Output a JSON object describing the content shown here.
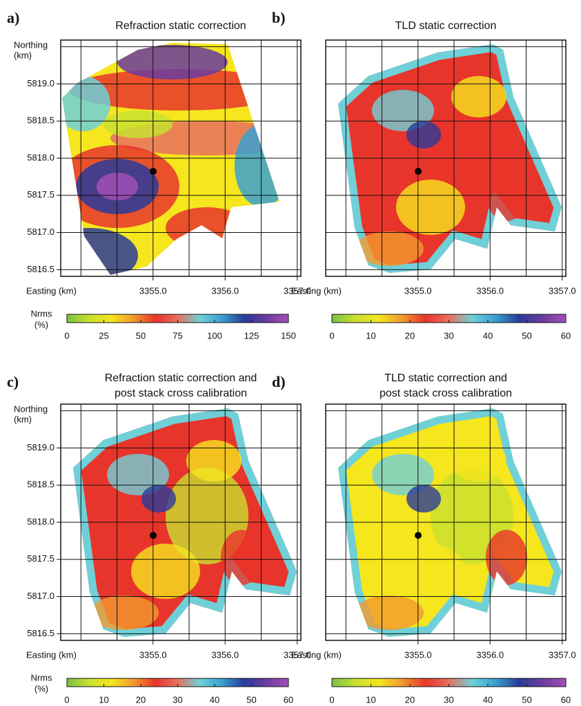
{
  "chart_data": [
    {
      "type": "heatmap",
      "label": "a)",
      "title": [
        "Refraction static correction"
      ],
      "ylabel": [
        "Northing",
        "(km)"
      ],
      "xlabel": "Easting (km)",
      "xlim": [
        3353.72,
        3357.05
      ],
      "ylim": [
        5816.41,
        5819.59
      ],
      "grid_spacing": 0.5,
      "xticks": [
        {
          "value": 3355,
          "label": "3355.0"
        },
        {
          "value": 3356,
          "label": "3356.0"
        },
        {
          "value": 3357,
          "label": "3357.0"
        }
      ],
      "yticks": [
        {
          "value": 5816.5,
          "label": "5816.5"
        },
        {
          "value": 5817,
          "label": "5817.0"
        },
        {
          "value": 5817.5,
          "label": "5817.5"
        },
        {
          "value": 5818,
          "label": "5818.0"
        },
        {
          "value": 5818.5,
          "label": "5818.5"
        },
        {
          "value": 5819,
          "label": "5819.0"
        }
      ],
      "colorbar": {
        "label": [
          "Nrms",
          "(%)"
        ],
        "lim": [
          0,
          150
        ],
        "ticks": [
          0,
          25,
          50,
          75,
          100,
          125,
          150
        ],
        "colors": [
          "#7ac143",
          "#c8e030",
          "#f5e61e",
          "#f29a2e",
          "#e8352b",
          "#e87060",
          "#6fd0d8",
          "#3aa0d0",
          "#2a3b9a",
          "#6a3ca0",
          "#a34fb8"
        ]
      }
    },
    {
      "type": "heatmap",
      "label": "b)",
      "title": [
        "TLD static correction"
      ],
      "xlabel": "Easting (km)",
      "xlim": [
        3353.72,
        3357.05
      ],
      "ylim": [
        5816.41,
        5819.59
      ],
      "grid_spacing": 0.5,
      "xticks": [
        {
          "value": 3355,
          "label": "3355.0"
        },
        {
          "value": 3356,
          "label": "3356.0"
        },
        {
          "value": 3357,
          "label": "3357.0"
        }
      ],
      "colorbar": {
        "lim": [
          0,
          60
        ],
        "ticks": [
          0,
          10,
          20,
          30,
          40,
          50,
          60
        ],
        "colors": [
          "#7ac143",
          "#c8e030",
          "#f5e61e",
          "#f29a2e",
          "#e8352b",
          "#e87060",
          "#6fd0d8",
          "#3aa0d0",
          "#2a3b9a",
          "#6a3ca0",
          "#a34fb8"
        ]
      }
    },
    {
      "type": "heatmap",
      "label": "c)",
      "title": [
        "Refraction static correction and",
        "post stack cross calibration"
      ],
      "ylabel": [
        "Northing",
        "(km)"
      ],
      "xlabel": "Easting (km)",
      "xlim": [
        3353.72,
        3357.05
      ],
      "ylim": [
        5816.41,
        5819.59
      ],
      "grid_spacing": 0.5,
      "xticks": [
        {
          "value": 3355,
          "label": "3355.0"
        },
        {
          "value": 3356,
          "label": "3356.0"
        },
        {
          "value": 3357,
          "label": "3357.0"
        }
      ],
      "yticks": [
        {
          "value": 5816.5,
          "label": "5816.5"
        },
        {
          "value": 5817,
          "label": "5817.0"
        },
        {
          "value": 5817.5,
          "label": "5817.5"
        },
        {
          "value": 5818,
          "label": "5818.0"
        },
        {
          "value": 5818.5,
          "label": "5818.5"
        },
        {
          "value": 5819,
          "label": "5819.0"
        }
      ],
      "colorbar": {
        "label": [
          "Nrms",
          "(%)"
        ],
        "lim": [
          0,
          60
        ],
        "ticks": [
          0,
          10,
          20,
          30,
          40,
          50,
          60
        ],
        "colors": [
          "#7ac143",
          "#c8e030",
          "#f5e61e",
          "#f29a2e",
          "#e8352b",
          "#e87060",
          "#6fd0d8",
          "#3aa0d0",
          "#2a3b9a",
          "#6a3ca0",
          "#a34fb8"
        ]
      }
    },
    {
      "type": "heatmap",
      "label": "d)",
      "title": [
        "TLD static correction and",
        "post stack cross calibration"
      ],
      "xlabel": "Easting (km)",
      "xlim": [
        3353.72,
        3357.05
      ],
      "ylim": [
        5816.41,
        5819.59
      ],
      "grid_spacing": 0.5,
      "xticks": [
        {
          "value": 3355,
          "label": "3355.0"
        },
        {
          "value": 3356,
          "label": "3356.0"
        },
        {
          "value": 3357,
          "label": "3357.0"
        }
      ],
      "colorbar": {
        "lim": [
          0,
          60
        ],
        "ticks": [
          0,
          10,
          20,
          30,
          40,
          50,
          60
        ],
        "colors": [
          "#7ac143",
          "#c8e030",
          "#f5e61e",
          "#f29a2e",
          "#e8352b",
          "#e87060",
          "#6fd0d8",
          "#3aa0d0",
          "#2a3b9a",
          "#6a3ca0",
          "#a34fb8"
        ]
      }
    }
  ]
}
